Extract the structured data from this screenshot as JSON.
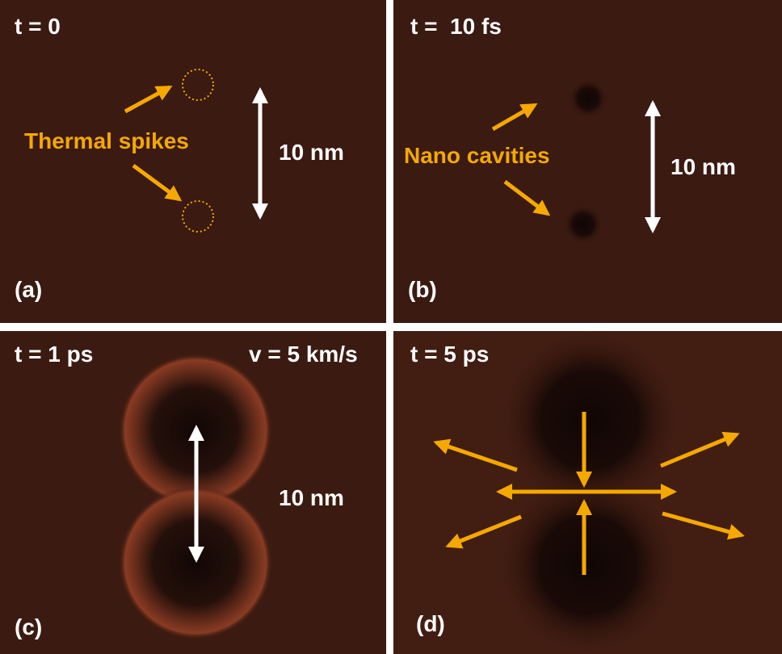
{
  "panels": [
    {
      "time": "t = 0",
      "label": "(a)",
      "annotation": "Thermal spikes",
      "scale": "10 nm"
    },
    {
      "time": "t =  10 fs",
      "label": "(b)",
      "annotation": "Nano cavities",
      "scale": "10 nm"
    },
    {
      "time": "t = 1 ps",
      "label": "(c)",
      "velocity": "v = 5 km/s",
      "scale": "10 nm"
    },
    {
      "time": "t = 5 ps",
      "label": "(d)"
    }
  ]
}
